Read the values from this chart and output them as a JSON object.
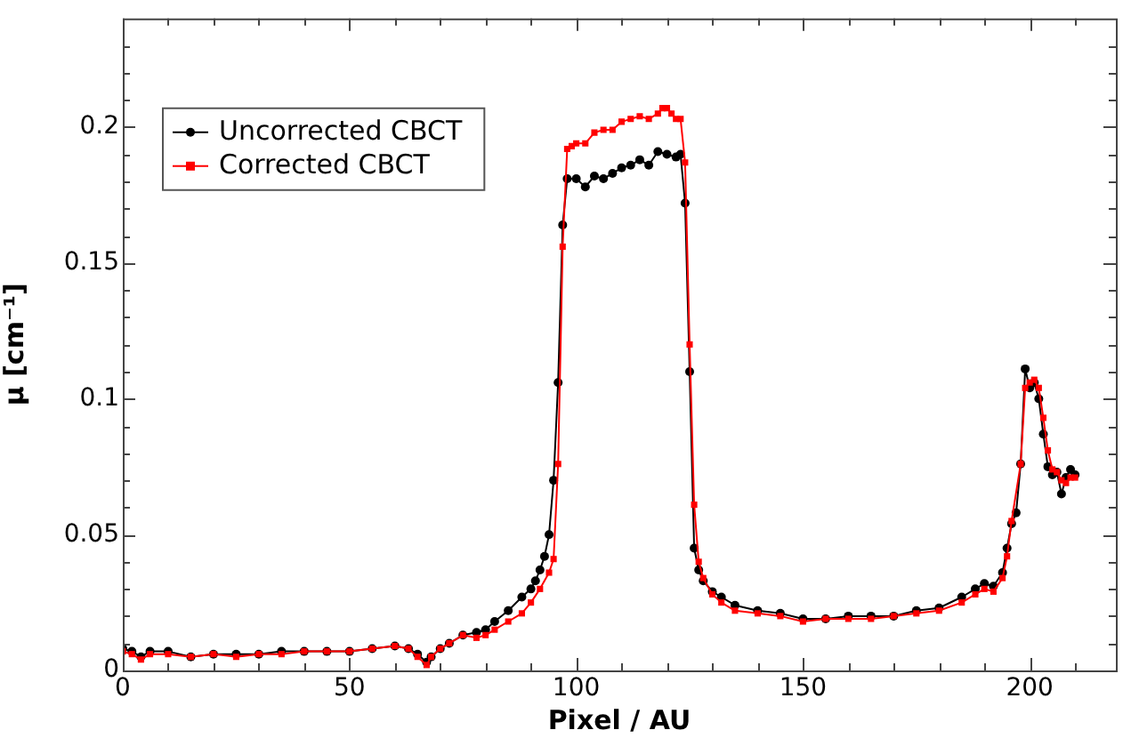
{
  "chart_data": {
    "type": "line",
    "xlabel": "Pixel / AU",
    "ylabel": "μ [cm⁻¹]",
    "xlim": [
      0,
      219
    ],
    "ylim": [
      0,
      0.24
    ],
    "xticks": [
      0,
      {
        "value": 10,
        "label": null
      },
      {
        "value": 20,
        "label": null
      },
      {
        "value": 30,
        "label": null
      },
      {
        "value": 40,
        "label": null
      },
      50,
      {
        "value": 60,
        "label": null
      },
      {
        "value": 70,
        "label": null
      },
      {
        "value": 80,
        "label": null
      },
      {
        "value": 90,
        "label": null
      },
      100,
      {
        "value": 110,
        "label": null
      },
      {
        "value": 120,
        "label": null
      },
      {
        "value": 130,
        "label": null
      },
      {
        "value": 140,
        "label": null
      },
      150,
      {
        "value": 160,
        "label": null
      },
      {
        "value": 170,
        "label": null
      },
      {
        "value": 180,
        "label": null
      },
      {
        "value": 190,
        "label": null
      },
      200,
      {
        "value": 210,
        "label": null
      }
    ],
    "yticks": [
      0,
      {
        "value": 0.01,
        "label": null
      },
      {
        "value": 0.02,
        "label": null
      },
      {
        "value": 0.03,
        "label": null
      },
      {
        "value": 0.04,
        "label": null
      },
      0.05,
      {
        "value": 0.06,
        "label": null
      },
      {
        "value": 0.07,
        "label": null
      },
      {
        "value": 0.08,
        "label": null
      },
      {
        "value": 0.09,
        "label": null
      },
      0.1,
      {
        "value": 0.11,
        "label": null
      },
      {
        "value": 0.12,
        "label": null
      },
      {
        "value": 0.13,
        "label": null
      },
      {
        "value": 0.14,
        "label": null
      },
      0.15,
      {
        "value": 0.16,
        "label": null
      },
      {
        "value": 0.17,
        "label": null
      },
      {
        "value": 0.18,
        "label": null
      },
      {
        "value": 0.19,
        "label": null
      },
      0.2,
      {
        "value": 0.21,
        "label": null
      },
      {
        "value": 0.22,
        "label": null
      },
      {
        "value": 0.23,
        "label": null
      }
    ],
    "grid": false,
    "legend": "top left",
    "line_style": "solid",
    "series": [
      {
        "name": "Uncorrected CBCT",
        "color": "#000000",
        "marker": "circle",
        "x": [
          0,
          2,
          4,
          6,
          10,
          15,
          20,
          25,
          30,
          35,
          40,
          45,
          50,
          55,
          60,
          63,
          65,
          67,
          68,
          70,
          72,
          75,
          78,
          80,
          82,
          85,
          88,
          90,
          91,
          92,
          93,
          94,
          95,
          96,
          97,
          98,
          100,
          102,
          104,
          106,
          108,
          110,
          112,
          114,
          116,
          118,
          120,
          122,
          123,
          124,
          125,
          126,
          127,
          128,
          130,
          132,
          135,
          140,
          145,
          150,
          155,
          160,
          165,
          170,
          175,
          180,
          185,
          188,
          190,
          192,
          194,
          195,
          196,
          197,
          198,
          199,
          200,
          201,
          202,
          203,
          204,
          205,
          206,
          207,
          208,
          209,
          210
        ],
        "values": [
          0.008,
          0.007,
          0.005,
          0.007,
          0.007,
          0.005,
          0.006,
          0.006,
          0.006,
          0.007,
          0.007,
          0.007,
          0.007,
          0.008,
          0.009,
          0.008,
          0.006,
          0.003,
          0.005,
          0.008,
          0.01,
          0.013,
          0.014,
          0.015,
          0.018,
          0.022,
          0.027,
          0.03,
          0.033,
          0.037,
          0.042,
          0.05,
          0.07,
          0.106,
          0.164,
          0.181,
          0.181,
          0.178,
          0.182,
          0.181,
          0.183,
          0.185,
          0.186,
          0.188,
          0.186,
          0.191,
          0.19,
          0.189,
          0.19,
          0.172,
          0.11,
          0.045,
          0.037,
          0.033,
          0.029,
          0.027,
          0.024,
          0.022,
          0.021,
          0.019,
          0.019,
          0.02,
          0.02,
          0.02,
          0.022,
          0.023,
          0.027,
          0.03,
          0.032,
          0.031,
          0.036,
          0.045,
          0.054,
          0.058,
          0.076,
          0.111,
          0.104,
          0.106,
          0.1,
          0.087,
          0.075,
          0.072,
          0.073,
          0.065,
          0.071,
          0.074,
          0.072
        ]
      },
      {
        "name": "Corrected CBCT",
        "color": "#ff0000",
        "marker": "square",
        "x": [
          0,
          2,
          4,
          6,
          10,
          15,
          20,
          25,
          30,
          35,
          40,
          45,
          50,
          55,
          60,
          63,
          65,
          67,
          68,
          70,
          72,
          75,
          78,
          80,
          82,
          85,
          88,
          90,
          92,
          94,
          95,
          96,
          97,
          98,
          99,
          100,
          102,
          104,
          106,
          108,
          110,
          112,
          114,
          116,
          118,
          119,
          120,
          121,
          122,
          123,
          124,
          125,
          126,
          127,
          128,
          130,
          132,
          135,
          140,
          145,
          150,
          155,
          160,
          165,
          170,
          175,
          180,
          185,
          188,
          190,
          192,
          194,
          195,
          196,
          198,
          199,
          200,
          201,
          202,
          203,
          204,
          205,
          206,
          207,
          208,
          209,
          210
        ],
        "values": [
          0.007,
          0.006,
          0.004,
          0.006,
          0.006,
          0.005,
          0.006,
          0.005,
          0.006,
          0.006,
          0.007,
          0.007,
          0.007,
          0.008,
          0.009,
          0.008,
          0.005,
          0.002,
          0.005,
          0.008,
          0.01,
          0.013,
          0.012,
          0.013,
          0.015,
          0.018,
          0.021,
          0.025,
          0.03,
          0.036,
          0.041,
          0.076,
          0.156,
          0.192,
          0.193,
          0.194,
          0.194,
          0.198,
          0.199,
          0.199,
          0.202,
          0.203,
          0.204,
          0.203,
          0.205,
          0.207,
          0.207,
          0.205,
          0.203,
          0.203,
          0.187,
          0.12,
          0.061,
          0.04,
          0.034,
          0.028,
          0.025,
          0.022,
          0.021,
          0.02,
          0.018,
          0.019,
          0.019,
          0.019,
          0.02,
          0.021,
          0.022,
          0.025,
          0.028,
          0.03,
          0.029,
          0.034,
          0.042,
          0.055,
          0.076,
          0.104,
          0.106,
          0.107,
          0.104,
          0.093,
          0.081,
          0.074,
          0.073,
          0.07,
          0.069,
          0.071,
          0.071
        ]
      }
    ]
  }
}
